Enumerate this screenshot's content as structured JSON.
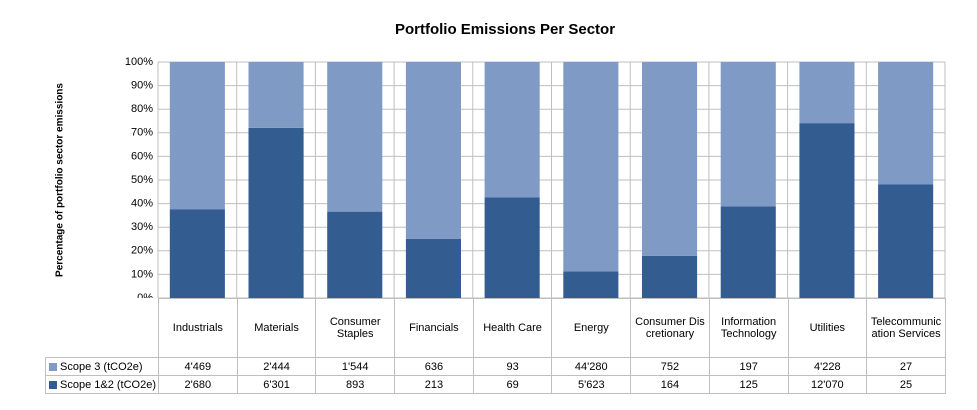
{
  "chart_data": {
    "type": "stacked_bar",
    "title": "Portfolio Emissions Per Sector",
    "y_label": "Percentage of portfolio sector emissions",
    "categories": [
      "Industrials",
      "Materials",
      "Consumer Staples",
      "Financials",
      "Health Care",
      "Energy",
      "Consumer Discretionary",
      "Information Technology",
      "Utilities",
      "Telecommunication Services"
    ],
    "series": [
      {
        "name": "Scope 3 (tCO2e)",
        "color": "#7f9ac5",
        "values": [
          62.5,
          27.9,
          63.4,
          74.9,
          57.4,
          88.7,
          82.1,
          61.2,
          25.9,
          51.9
        ]
      },
      {
        "name": "Scope 1&2 (tCO2e)",
        "color": "#335c91",
        "values": [
          37.5,
          72.1,
          36.6,
          25.1,
          42.6,
          11.3,
          17.9,
          38.8,
          74.1,
          48.1
        ]
      }
    ],
    "ylim": [
      0,
      100
    ],
    "yticks": [
      {
        "value": 0,
        "label": "0%"
      },
      {
        "value": 10,
        "label": "10%"
      },
      {
        "value": 20,
        "label": "20%"
      },
      {
        "value": 30,
        "label": "30%"
      },
      {
        "value": 40,
        "label": "40%"
      },
      {
        "value": 50,
        "label": "50%"
      },
      {
        "value": 60,
        "label": "60%"
      },
      {
        "value": 70,
        "label": "70%"
      },
      {
        "value": 80,
        "label": "80%"
      },
      {
        "value": 90,
        "label": "90%"
      },
      {
        "value": 100,
        "label": "100%"
      }
    ],
    "grid": true
  },
  "table": {
    "rows": [
      [
        "4'469",
        "2'444",
        "1'544",
        "636",
        "93",
        "44'280",
        "752",
        "197",
        "4'228",
        "27"
      ],
      [
        "2'680",
        "6'301",
        "893",
        "213",
        "69",
        "5'623",
        "164",
        "125",
        "12'070",
        "25"
      ]
    ]
  }
}
